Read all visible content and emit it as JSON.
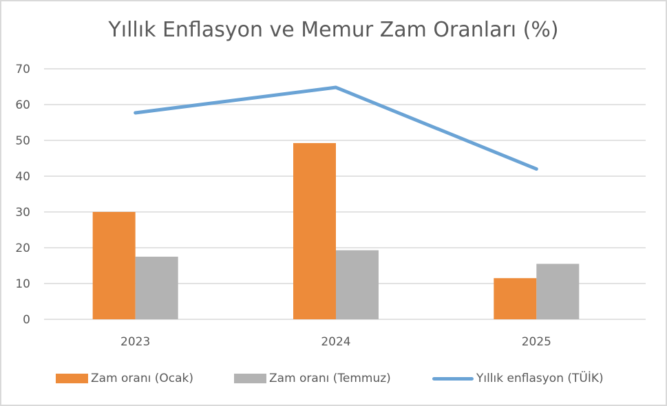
{
  "chart_data": {
    "type": "bar+line",
    "title": "Yıllık Enflasyon ve Memur Zam Oranları (%)",
    "xlabel": "",
    "ylabel": "",
    "ylim": [
      0,
      70
    ],
    "yticks": [
      0,
      10,
      20,
      30,
      40,
      50,
      60,
      70
    ],
    "grid": true,
    "legend_position": "bottom",
    "categories": [
      "2023",
      "2024",
      "2025"
    ],
    "series": [
      {
        "name": "Zam oranı (Ocak)",
        "type": "bar",
        "color": "#ed8b3a",
        "values": [
          30,
          49.25,
          11.5
        ]
      },
      {
        "name": "Zam oranı (Temmuz)",
        "type": "bar",
        "color": "#b3b3b3",
        "values": [
          17.5,
          19.3,
          15.5
        ]
      },
      {
        "name": "Yıllık enflasyon (TÜİK)",
        "type": "line",
        "color": "#6aa3d5",
        "values": [
          57.7,
          64.8,
          42
        ]
      }
    ]
  },
  "title": "Yıllık Enflasyon ve Memur Zam Oranları (%)",
  "yticks": [
    "0",
    "10",
    "20",
    "30",
    "40",
    "50",
    "60",
    "70"
  ],
  "categories": [
    "2023",
    "2024",
    "2025"
  ],
  "legend": [
    {
      "label": "Zam oranı (Ocak)",
      "color": "#ed8b3a"
    },
    {
      "label": "Zam oranı (Temmuz)",
      "color": "#b3b3b3"
    },
    {
      "label": "Yıllık enflasyon (TÜİK)",
      "color": "#6aa3d5"
    }
  ]
}
